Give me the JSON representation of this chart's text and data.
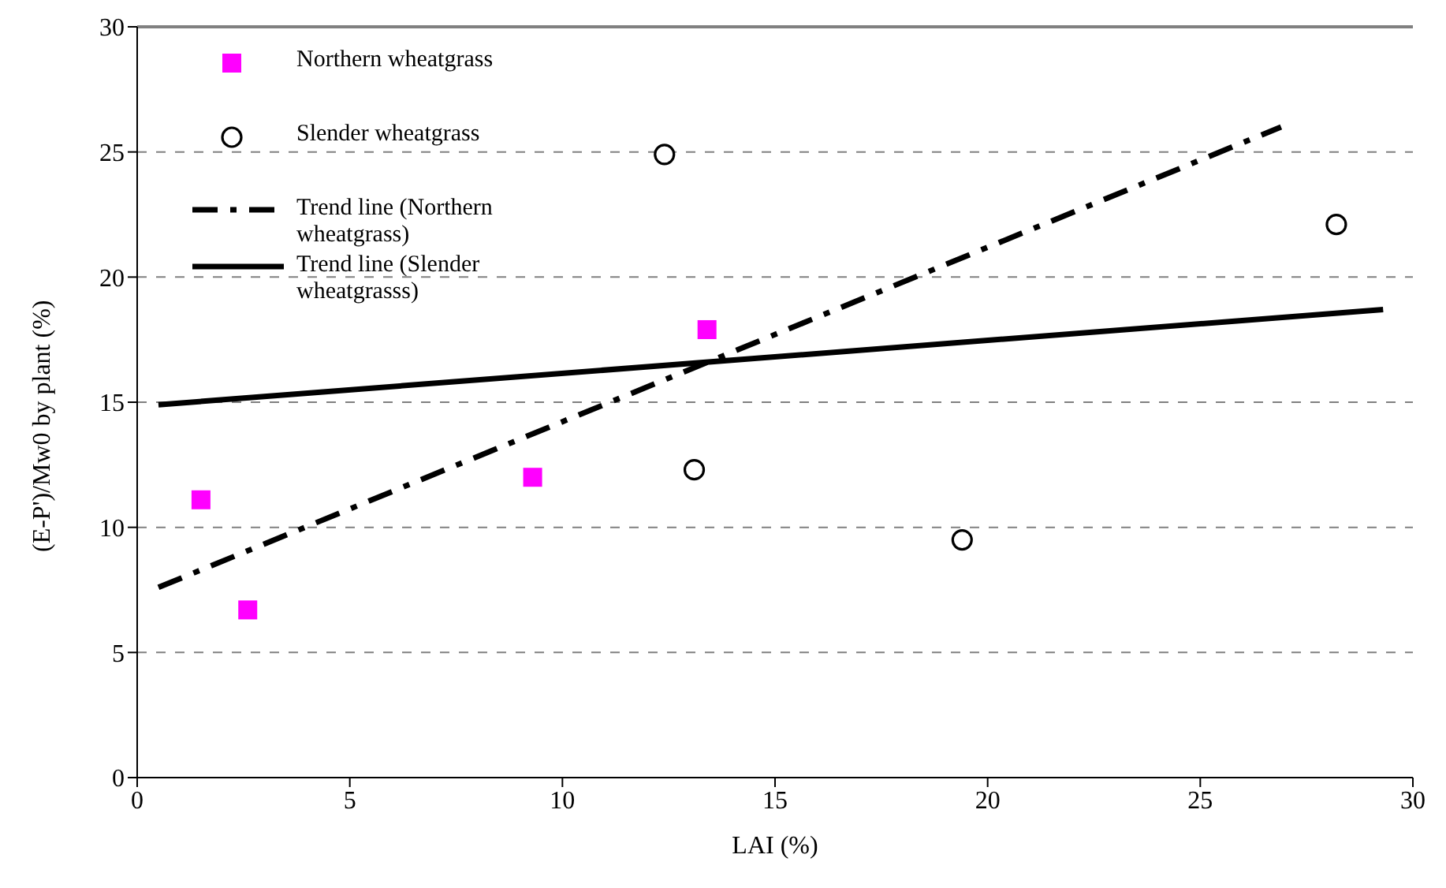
{
  "chart_data": {
    "type": "scatter",
    "xlabel": "LAI (%)",
    "ylabel": "(E-P')/Mw0 by plant (%)",
    "xlim": [
      0,
      30
    ],
    "xticks": [
      0,
      5,
      10,
      15,
      20,
      25,
      30
    ],
    "ylim": [
      0,
      30
    ],
    "yticks": [
      0,
      5,
      10,
      15,
      20,
      25,
      30
    ],
    "grid": "y",
    "legend": "top left",
    "series": [
      {
        "name": "Northern wheatgrass",
        "type": "scatter",
        "color": "#ff00ff",
        "marker": "square",
        "x": [
          1.5,
          2.6,
          9.3,
          13.4
        ],
        "values": [
          11.1,
          6.7,
          12.0,
          17.9
        ]
      },
      {
        "name": "Slender wheatgrass",
        "type": "scatter",
        "color": "#000000",
        "marker": "circle",
        "x": [
          12.4,
          13.1,
          19.4,
          28.2
        ],
        "values": [
          24.9,
          12.3,
          9.5,
          22.1
        ]
      },
      {
        "name": "Trend line (Northern wheatgrass)",
        "type": "line",
        "color": "#000000",
        "line_style": "dashed",
        "marker": "none",
        "x": [
          0.5,
          26.9
        ],
        "values": [
          7.6,
          26.0
        ]
      },
      {
        "name": "Trend line (Slender wheatgrasss)",
        "type": "line",
        "color": "#000000",
        "line_style": "solid",
        "marker": "none",
        "x": [
          0.5,
          29.3
        ],
        "values": [
          14.9,
          18.7
        ]
      }
    ]
  }
}
